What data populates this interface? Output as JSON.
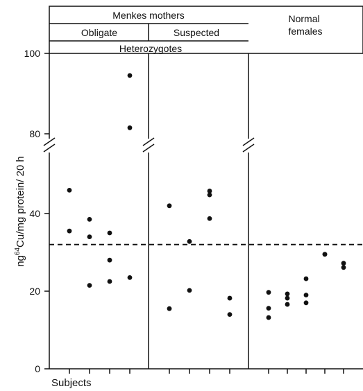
{
  "chart_data": {
    "type": "scatter",
    "title": "",
    "xlabel": "Subjects",
    "ylabel": "ng",
    "ylabel_sup": "64",
    "ylabel_rest": "Cu/mg  protein/ 20 h",
    "y_ticks_lower": [
      "0",
      "20",
      "40"
    ],
    "y_ticks_upper": [
      "80",
      "100"
    ],
    "axis_break": true,
    "lower_ylim": [
      0,
      50
    ],
    "upper_ylim": [
      75,
      104
    ],
    "reference_line": 32,
    "header": {
      "menkes_mothers": "Menkes  mothers",
      "obligate": "Obligate",
      "suspected": "Suspected",
      "heterozygotes": "Heterozygotes",
      "normal_females": "Normal\nfemales"
    },
    "groups": [
      {
        "name": "Obligate",
        "subjects": [
          {
            "subject": 1,
            "values": [
              46,
              35.5
            ]
          },
          {
            "subject": 2,
            "values": [
              38.5,
              34,
              21.5
            ]
          },
          {
            "subject": 3,
            "values": [
              35,
              28,
              22.5
            ]
          },
          {
            "subject": 4,
            "values": [
              94.5,
              81.5,
              23.5
            ]
          }
        ]
      },
      {
        "name": "Suspected",
        "subjects": [
          {
            "subject": 1,
            "values": [
              42,
              15.5
            ]
          },
          {
            "subject": 2,
            "values": [
              32.8,
              20.2
            ]
          },
          {
            "subject": 3,
            "values": [
              45.8,
              44.8,
              38.7
            ]
          },
          {
            "subject": 4,
            "values": [
              18.2,
              14
            ]
          }
        ]
      },
      {
        "name": "Normal females",
        "subjects": [
          {
            "subject": 1,
            "values": [
              19.7,
              15.6,
              13.2
            ]
          },
          {
            "subject": 2,
            "values": [
              19.3,
              18.2,
              16.6
            ]
          },
          {
            "subject": 3,
            "values": [
              23.2,
              19,
              17
            ]
          },
          {
            "subject": 4,
            "values": [
              29.5,
              29.5
            ]
          },
          {
            "subject": 5,
            "values": [
              27.2,
              26.1
            ]
          }
        ]
      }
    ]
  }
}
